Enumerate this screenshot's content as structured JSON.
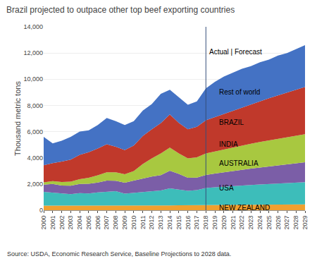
{
  "chart_data": {
    "type": "area",
    "stacked": true,
    "title": "Brazil projected to outpace other top beef exporting countries",
    "ylabel": "Thousand metric tons",
    "source": "Source: USDA, Economic Research Service, Baseline Projections to 2028 data.",
    "x": [
      2000,
      2001,
      2002,
      2003,
      2004,
      2005,
      2006,
      2007,
      2008,
      2009,
      2010,
      2011,
      2012,
      2013,
      2014,
      2015,
      2016,
      2017,
      2018,
      2019,
      2020,
      2021,
      2022,
      2023,
      2024,
      2025,
      2026,
      2027,
      2028,
      2029
    ],
    "series": [
      {
        "name": "NEW ZEALAND",
        "color": "#F0A030",
        "values": [
          350,
          350,
          340,
          330,
          340,
          330,
          330,
          335,
          330,
          330,
          335,
          340,
          345,
          355,
          365,
          375,
          380,
          385,
          390,
          395,
          400,
          405,
          410,
          415,
          420,
          425,
          430,
          435,
          440,
          445
        ]
      },
      {
        "name": "USA",
        "color": "#3DBDBA",
        "values": [
          1050,
          1000,
          950,
          900,
          970,
          950,
          1030,
          1080,
          1130,
          930,
          980,
          1050,
          1100,
          1150,
          1300,
          1200,
          1100,
          1150,
          1300,
          1350,
          1400,
          1440,
          1480,
          1510,
          1540,
          1570,
          1600,
          1630,
          1660,
          1690
        ]
      },
      {
        "name": "AUSTRALIA",
        "color": "#7B5EA7",
        "values": [
          550,
          650,
          600,
          640,
          700,
          740,
          750,
          840,
          790,
          840,
          940,
          1040,
          1130,
          1180,
          1350,
          1200,
          1000,
          950,
          1000,
          1050,
          1100,
          1150,
          1200,
          1250,
          1300,
          1350,
          1400,
          1450,
          1490,
          1520
        ]
      },
      {
        "name": "INDIA",
        "color": "#A8C840",
        "values": [
          180,
          220,
          270,
          310,
          360,
          460,
          550,
          640,
          640,
          640,
          730,
          1100,
          1380,
          1650,
          1760,
          1560,
          1480,
          1560,
          1650,
          1700,
          1750,
          1800,
          1850,
          1900,
          1950,
          1990,
          2030,
          2070,
          2110,
          2150
        ]
      },
      {
        "name": "BRAZIL",
        "color": "#C0392B",
        "values": [
          1300,
          1380,
          1560,
          1680,
          1860,
          1950,
          2050,
          2140,
          1950,
          1850,
          1950,
          2140,
          2230,
          2320,
          2530,
          2330,
          2220,
          2320,
          2530,
          2620,
          2710,
          2810,
          2910,
          3010,
          3110,
          3210,
          3310,
          3410,
          3510,
          3600
        ]
      },
      {
        "name": "Rest of world",
        "color": "#4472C4",
        "values": [
          2170,
          1500,
          1580,
          1740,
          1770,
          1670,
          1790,
          2005,
          1960,
          1910,
          1865,
          1930,
          1915,
          2225,
          1895,
          1935,
          1870,
          1935,
          2430,
          2685,
          2840,
          2895,
          2950,
          2915,
          2980,
          2955,
          3030,
          3005,
          3090,
          3195
        ]
      }
    ],
    "vlines": [
      {
        "x": 2018,
        "color": "#354F7A"
      }
    ],
    "annotations": [
      {
        "text": "Actual | Forecast",
        "x": 2018,
        "y": 12500
      },
      {
        "text": "Rest of world",
        "x": 2019.3,
        "y": 9000
      },
      {
        "text": "BRAZIL",
        "x": 2019.3,
        "y": 6700
      },
      {
        "text": "INDIA",
        "x": 2019.3,
        "y": 5050
      },
      {
        "text": "AUSTRALIA",
        "x": 2019.3,
        "y": 3600
      },
      {
        "text": "USA",
        "x": 2019.3,
        "y": 1700
      },
      {
        "text": "NEW ZEALAND",
        "x": 2019.3,
        "y": 210
      }
    ],
    "xlim": [
      2000,
      2029
    ],
    "xticks": [
      2000,
      2001,
      2002,
      2003,
      2004,
      2005,
      2006,
      2007,
      2008,
      2009,
      2010,
      2011,
      2012,
      2013,
      2014,
      2015,
      2016,
      2017,
      2018,
      2019,
      2020,
      2021,
      2022,
      2023,
      2024,
      2025,
      2026,
      2027,
      2028,
      2029
    ],
    "ylim": [
      0,
      14000
    ],
    "yticks": [
      0,
      {
        "value": 2000,
        "label": "2,000"
      },
      {
        "value": 4000,
        "label": "4,000"
      },
      {
        "value": 6000,
        "label": "6,000"
      },
      {
        "value": 8000,
        "label": "8,000"
      },
      {
        "value": 10000,
        "label": "10,000"
      },
      {
        "value": 12000,
        "label": "12,000"
      },
      {
        "value": 14000,
        "label": "14,000"
      }
    ],
    "grid": "y",
    "legend": false
  }
}
